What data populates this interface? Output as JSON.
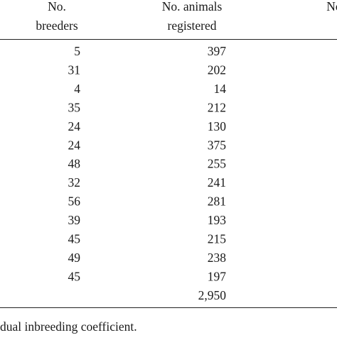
{
  "table": {
    "columns": [
      {
        "title_lines": [
          "No.",
          "breeders"
        ]
      },
      {
        "title_lines": [
          "No. animals",
          "registered"
        ]
      },
      {
        "title_lines": [
          "No"
        ]
      }
    ],
    "rows": [
      [
        "5",
        "397"
      ],
      [
        "31",
        "202"
      ],
      [
        "4",
        "14"
      ],
      [
        "35",
        "212"
      ],
      [
        "24",
        "130"
      ],
      [
        "24",
        "375"
      ],
      [
        "48",
        "255"
      ],
      [
        "32",
        "241"
      ],
      [
        "56",
        "281"
      ],
      [
        "39",
        "193"
      ],
      [
        "45",
        "215"
      ],
      [
        "49",
        "238"
      ],
      [
        "45",
        "197"
      ]
    ],
    "total": "2,950"
  },
  "footnote": "dual inbreeding coefficient."
}
